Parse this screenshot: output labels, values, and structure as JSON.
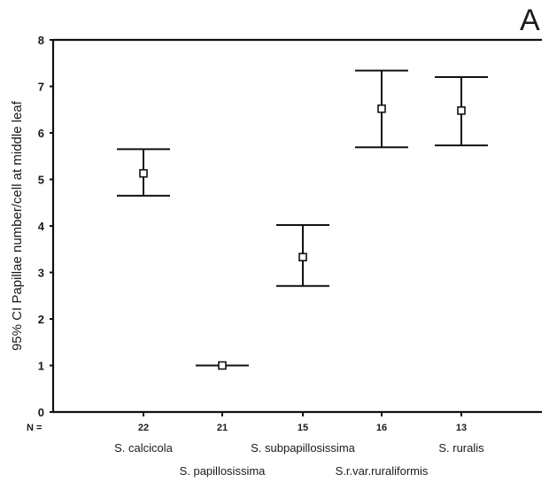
{
  "chart_data": {
    "type": "errorbar",
    "panel_label": "A",
    "ylabel": "95% CI Papillae number/cell at middle leaf",
    "ylim": [
      0,
      8
    ],
    "yticks": [
      0,
      1,
      2,
      3,
      4,
      5,
      6,
      7,
      8
    ],
    "n_prefix": "N =",
    "categories": [
      "S. calcicola",
      "S. papillosissima",
      "S. subpapillosissima",
      "S.r.var.ruraliformis",
      "S. ruralis"
    ],
    "n_values": [
      "22",
      "21",
      "15",
      "16",
      "13"
    ],
    "means": [
      5.13,
      1.0,
      3.33,
      6.52,
      6.48
    ],
    "lower": [
      4.65,
      1.0,
      2.71,
      5.69,
      5.73
    ],
    "upper": [
      5.65,
      1.0,
      4.02,
      7.34,
      7.2
    ],
    "grid": false
  }
}
